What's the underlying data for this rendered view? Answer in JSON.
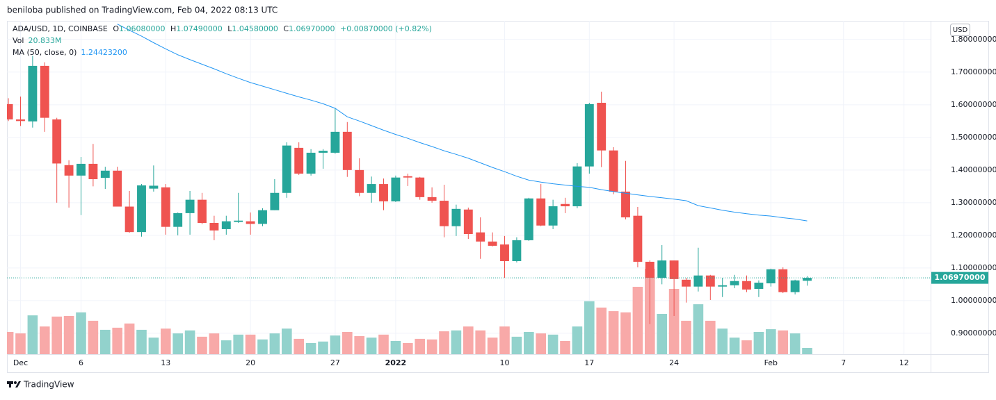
{
  "header": {
    "published": "beniloba published on TradingView.com, Feb 04, 2022 08:13 UTC",
    "brand": "TradingView",
    "currency": "USD"
  },
  "legend": {
    "symbol": "ADA/USD, 1D, COINBASE",
    "o_key": "O",
    "o": "1.06080000",
    "h_key": "H",
    "h": "1.07490000",
    "l_key": "L",
    "l": "1.04580000",
    "c_key": "C",
    "c": "1.06970000",
    "change": "+0.00870000 (+0.82%)",
    "vol_key": "Vol",
    "vol": "20.833M",
    "ma_key": "MA (50, close, 0)",
    "ma": "1.24423200"
  },
  "chart_data": {
    "type": "candlestick",
    "open": [
      1.602,
      1.555,
      1.549,
      1.719,
      1.555,
      1.415,
      1.383,
      1.419,
      1.376,
      1.398,
      1.288,
      1.21,
      1.343,
      1.347,
      1.226,
      1.268,
      1.309,
      1.238,
      1.219,
      1.241,
      1.243,
      1.235,
      1.277,
      1.33,
      1.468,
      1.389,
      1.453,
      1.453,
      1.517,
      1.4,
      1.33,
      1.357,
      1.304,
      1.381,
      1.377,
      1.317,
      1.306,
      1.228,
      1.279,
      1.209,
      1.181,
      1.172,
      1.121,
      1.185,
      1.313,
      1.23,
      1.296,
      1.289,
      1.411,
      1.606,
      1.46,
      1.334,
      1.26,
      1.119,
      1.07,
      1.123,
      1.064,
      1.043,
      1.077,
      1.043,
      1.047,
      1.06,
      1.036,
      1.053,
      1.096,
      1.026,
      1.0608
    ],
    "high": [
      1.62,
      1.625,
      1.75,
      1.73,
      1.56,
      1.43,
      1.44,
      1.48,
      1.41,
      1.41,
      1.336,
      1.357,
      1.414,
      1.357,
      1.27,
      1.336,
      1.33,
      1.26,
      1.26,
      1.33,
      1.27,
      1.283,
      1.372,
      1.485,
      1.485,
      1.464,
      1.464,
      1.59,
      1.547,
      1.436,
      1.38,
      1.374,
      1.383,
      1.389,
      1.379,
      1.347,
      1.355,
      1.294,
      1.285,
      1.255,
      1.209,
      1.198,
      1.194,
      1.315,
      1.357,
      1.309,
      1.315,
      1.421,
      1.606,
      1.64,
      1.47,
      1.428,
      1.287,
      1.123,
      1.17,
      1.123,
      1.07,
      1.162,
      1.079,
      1.07,
      1.079,
      1.077,
      1.062,
      1.098,
      1.102,
      1.064,
      1.0749
    ],
    "low": [
      1.55,
      1.535,
      1.53,
      1.517,
      1.3,
      1.285,
      1.262,
      1.35,
      1.342,
      1.29,
      1.208,
      1.196,
      1.334,
      1.202,
      1.2,
      1.202,
      1.234,
      1.185,
      1.202,
      1.238,
      1.202,
      1.228,
      1.277,
      1.315,
      1.385,
      1.383,
      1.404,
      1.45,
      1.379,
      1.32,
      1.3,
      1.277,
      1.302,
      1.351,
      1.309,
      1.3,
      1.194,
      1.198,
      1.189,
      1.128,
      1.166,
      1.07,
      1.117,
      1.183,
      1.228,
      1.219,
      1.268,
      1.283,
      1.389,
      1.409,
      1.326,
      1.249,
      1.102,
      0.928,
      1.05,
      0.953,
      0.994,
      1.028,
      1.002,
      1.011,
      1.038,
      1.026,
      1.011,
      1.043,
      1.023,
      1.019,
      1.0458
    ],
    "close": [
      1.555,
      1.55,
      1.719,
      1.56,
      1.42,
      1.383,
      1.419,
      1.372,
      1.398,
      1.288,
      1.21,
      1.353,
      1.352,
      1.226,
      1.268,
      1.309,
      1.238,
      1.215,
      1.243,
      1.245,
      1.235,
      1.277,
      1.33,
      1.475,
      1.389,
      1.453,
      1.459,
      1.517,
      1.4,
      1.33,
      1.357,
      1.304,
      1.377,
      1.377,
      1.317,
      1.306,
      1.228,
      1.281,
      1.204,
      1.181,
      1.168,
      1.121,
      1.185,
      1.313,
      1.23,
      1.289,
      1.289,
      1.411,
      1.602,
      1.46,
      1.334,
      1.255,
      1.119,
      1.07,
      1.123,
      1.066,
      1.043,
      1.077,
      1.043,
      1.047,
      1.06,
      1.034,
      1.055,
      1.096,
      1.026,
      1.062,
      1.0697
    ],
    "volume": [
      74,
      69,
      129,
      92,
      125,
      127,
      139,
      111,
      81,
      88,
      102,
      81,
      55,
      85,
      69,
      79,
      58,
      69,
      46,
      65,
      65,
      49,
      69,
      85,
      51,
      37,
      42,
      62,
      74,
      60,
      55,
      65,
      44,
      37,
      51,
      49,
      76,
      79,
      92,
      79,
      55,
      92,
      58,
      74,
      69,
      65,
      44,
      92,
      176,
      155,
      143,
      139,
      224,
      284,
      134,
      217,
      111,
      166,
      111,
      85,
      55,
      46,
      74,
      83,
      79,
      69,
      20.833
    ],
    "ma": [
      null,
      null,
      null,
      null,
      null,
      null,
      null,
      null,
      null,
      1.847,
      1.828,
      1.81,
      1.79,
      1.771,
      1.753,
      1.738,
      1.724,
      1.71,
      1.695,
      1.681,
      1.668,
      1.657,
      1.646,
      1.635,
      1.624,
      1.614,
      1.603,
      1.589,
      1.563,
      1.55,
      1.536,
      1.522,
      1.509,
      1.497,
      1.484,
      1.472,
      1.459,
      1.448,
      1.436,
      1.422,
      1.408,
      1.395,
      1.381,
      1.369,
      1.363,
      1.358,
      1.354,
      1.35,
      1.347,
      1.34,
      1.334,
      1.329,
      1.324,
      1.319,
      1.315,
      1.311,
      1.306,
      1.291,
      1.284,
      1.277,
      1.271,
      1.266,
      1.262,
      1.259,
      1.254,
      1.25,
      1.244232
    ],
    "up_color": "#26a69a",
    "down_color": "#ef5350",
    "up_volume_color": "#92d2cc",
    "down_volume_color": "#f8a9a8",
    "ma_color": "#2196f3",
    "ylim": [
      0.836,
      1.857
    ],
    "yticks": [
      {
        "value": 0.9,
        "label": "0.90000000"
      },
      {
        "value": 1.0,
        "label": "1.00000000"
      },
      {
        "value": 1.1,
        "label": "1.10000000"
      },
      {
        "value": 1.2,
        "label": "1.20000000"
      },
      {
        "value": 1.3,
        "label": "1.30000000"
      },
      {
        "value": 1.4,
        "label": "1.40000000"
      },
      {
        "value": 1.5,
        "label": "1.50000000"
      },
      {
        "value": 1.6,
        "label": "1.60000000"
      },
      {
        "value": 1.7,
        "label": "1.70000000"
      },
      {
        "value": 1.8,
        "label": "1.80000000"
      }
    ],
    "xlim": [
      -0.12,
      76.2
    ],
    "xticks": [
      {
        "value": 1,
        "label": "Dec"
      },
      6,
      13,
      20,
      27,
      {
        "value": 32,
        "label": "2022"
      },
      {
        "value": 41,
        "label": "10"
      },
      {
        "value": 48,
        "label": "17"
      },
      {
        "value": 55,
        "label": "24"
      },
      {
        "value": 63,
        "label": "Feb"
      },
      {
        "value": 69,
        "label": "7"
      },
      {
        "value": 74,
        "label": "12"
      }
    ],
    "last_price": {
      "value": 1.0697,
      "label": "1.06970000"
    },
    "grid": true
  }
}
